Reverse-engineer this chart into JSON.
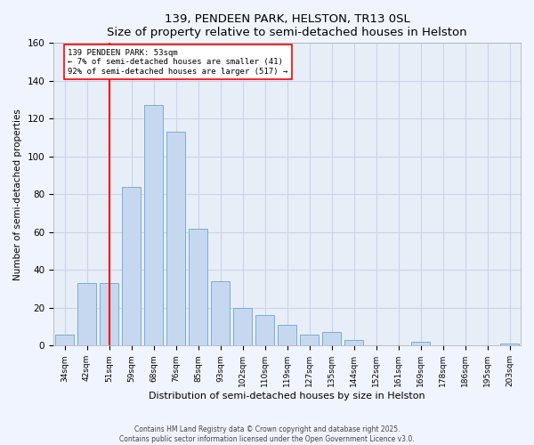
{
  "title": "139, PENDEEN PARK, HELSTON, TR13 0SL",
  "subtitle": "Size of property relative to semi-detached houses in Helston",
  "xlabel": "Distribution of semi-detached houses by size in Helston",
  "ylabel": "Number of semi-detached properties",
  "bar_labels": [
    "34sqm",
    "42sqm",
    "51sqm",
    "59sqm",
    "68sqm",
    "76sqm",
    "85sqm",
    "93sqm",
    "102sqm",
    "110sqm",
    "119sqm",
    "127sqm",
    "135sqm",
    "144sqm",
    "152sqm",
    "161sqm",
    "169sqm",
    "178sqm",
    "186sqm",
    "195sqm",
    "203sqm"
  ],
  "bar_values": [
    6,
    33,
    33,
    84,
    127,
    113,
    62,
    34,
    20,
    16,
    11,
    6,
    7,
    3,
    0,
    0,
    2,
    0,
    0,
    0,
    1
  ],
  "bar_color": "#c5d8f0",
  "bar_edge_color": "#7aadd4",
  "vline_x": 2,
  "vline_color": "red",
  "annotation_title": "139 PENDEEN PARK: 53sqm",
  "annotation_line1": "← 7% of semi-detached houses are smaller (41)",
  "annotation_line2": "92% of semi-detached houses are larger (517) →",
  "ylim": [
    0,
    160
  ],
  "yticks": [
    0,
    20,
    40,
    60,
    80,
    100,
    120,
    140,
    160
  ],
  "footer1": "Contains HM Land Registry data © Crown copyright and database right 2025.",
  "footer2": "Contains public sector information licensed under the Open Government Licence v3.0.",
  "bg_color": "#f0f4ff",
  "plot_bg_color": "#e8eef8",
  "grid_color": "#c8d4e8"
}
